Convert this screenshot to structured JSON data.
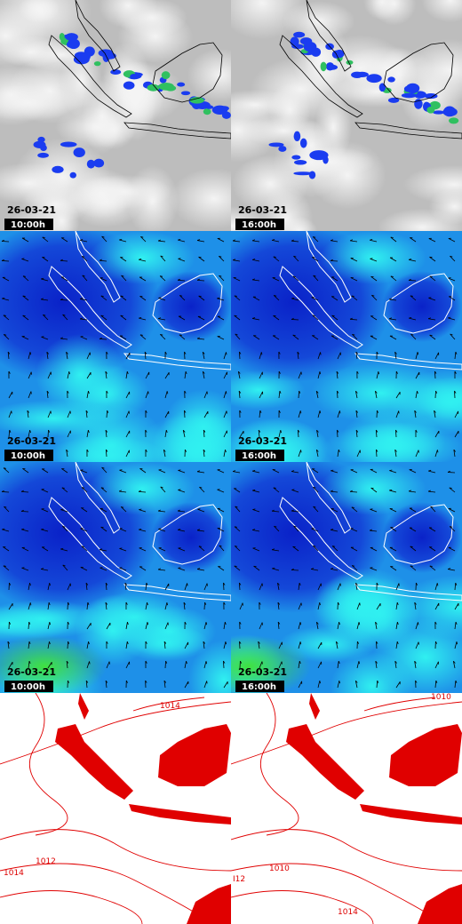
{
  "panels": [
    {
      "date": "26-03-21",
      "time": "10:00h"
    },
    {
      "date": "26-03-21",
      "time": "16:00h"
    },
    {
      "date": "26-03-21",
      "time": "10:00h"
    },
    {
      "date": "26-03-21",
      "time": "16:00h"
    },
    {
      "date": "26-03-21",
      "time": "10:00h"
    },
    {
      "date": "26-03-21",
      "time": "16:00h"
    }
  ],
  "contour_labels": [
    "1014",
    "1012",
    "1014",
    "1010",
    "1010",
    "I12",
    "1014"
  ]
}
